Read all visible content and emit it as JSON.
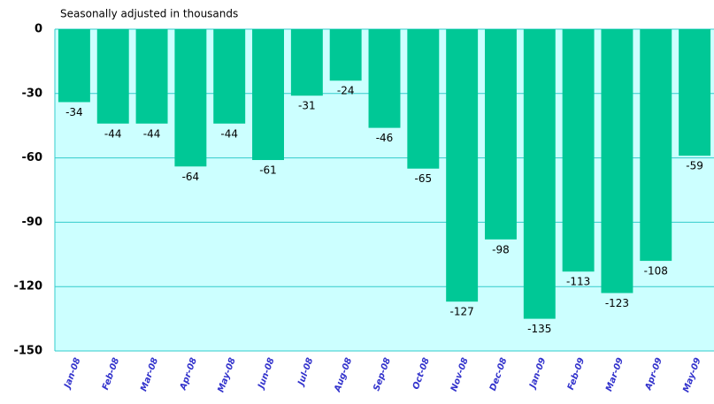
{
  "chart_data": {
    "type": "bar",
    "title": "Seasonally adjusted in thousands",
    "categories": [
      "Jan-08",
      "Feb-08",
      "Mar-08",
      "Apr-08",
      "May-08",
      "Jun-08",
      "Jul-08",
      "Aug-08",
      "Sep-08",
      "Oct-08",
      "Nov-08",
      "Dec-08",
      "Jan-09",
      "Feb-09",
      "Mar-09",
      "Apr-09",
      "May-09"
    ],
    "values": [
      -34,
      -44,
      -44,
      -64,
      -44,
      -61,
      -31,
      -24,
      -46,
      -65,
      -127,
      -98,
      -135,
      -113,
      -123,
      -108,
      -59
    ],
    "color": "#00c896",
    "ylim": [
      -150,
      0
    ],
    "yticks": [
      0,
      -30,
      -60,
      -90,
      -120,
      -150
    ],
    "grid": true
  }
}
